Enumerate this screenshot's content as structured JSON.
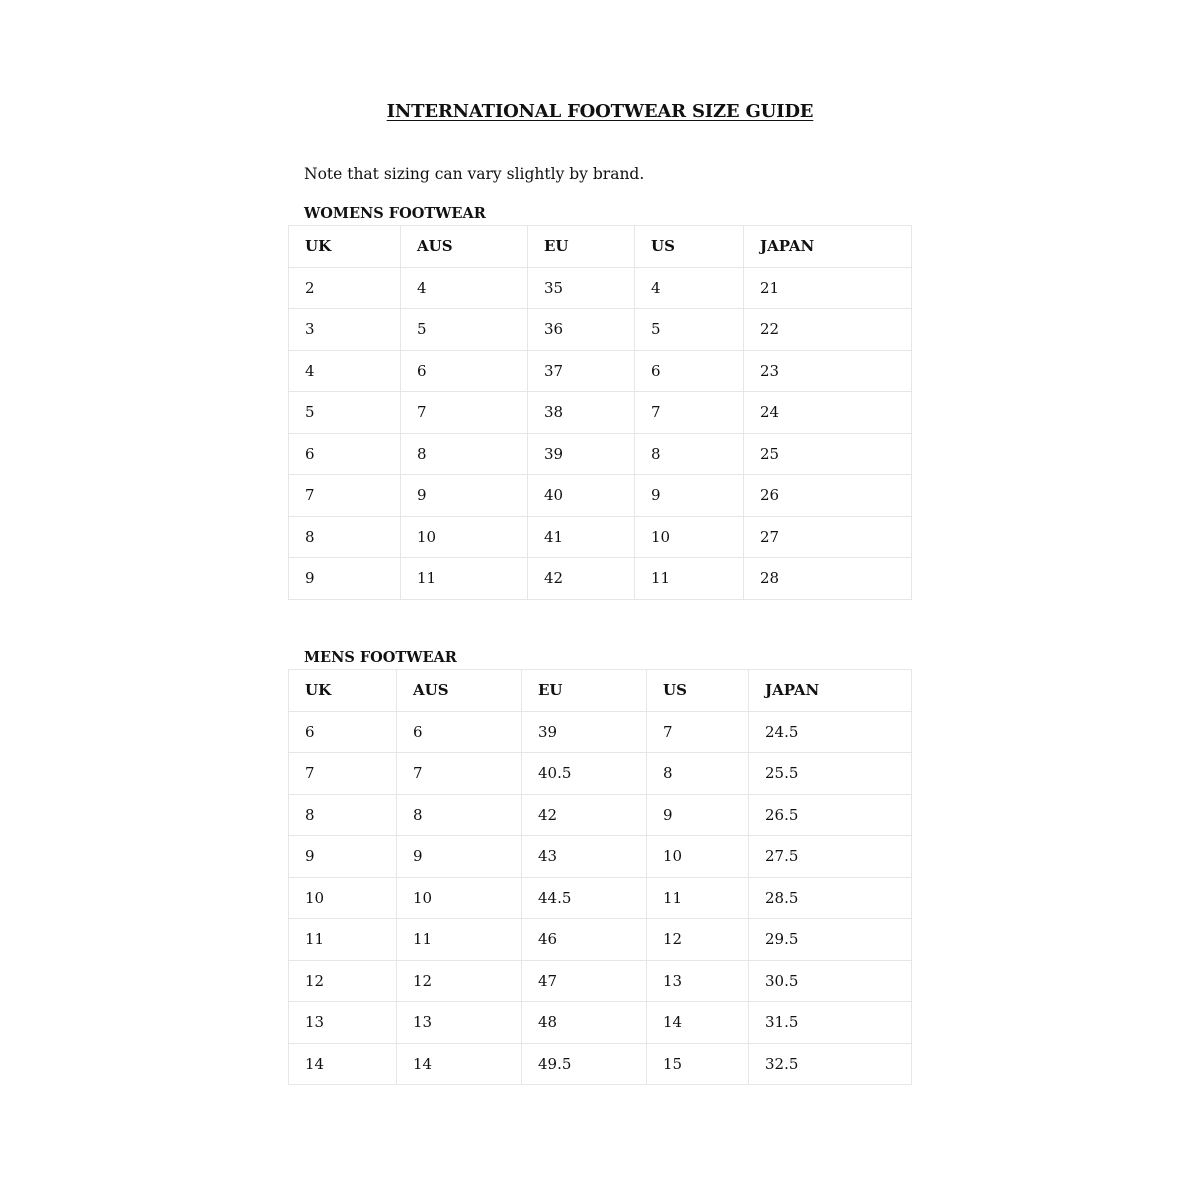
{
  "title": "INTERNATIONAL FOOTWEAR SIZE GUIDE",
  "note": "Note that sizing can vary slightly by brand.",
  "womens": {
    "heading": "WOMENS FOOTWEAR",
    "columns": [
      "UK",
      "AUS",
      "EU",
      "US",
      "JAPAN"
    ],
    "rows": [
      [
        "2",
        "4",
        "35",
        "4",
        "21"
      ],
      [
        "3",
        "5",
        "36",
        "5",
        "22"
      ],
      [
        "4",
        "6",
        "37",
        "6",
        "23"
      ],
      [
        "5",
        "7",
        "38",
        "7",
        "24"
      ],
      [
        "6",
        "8",
        "39",
        "8",
        "25"
      ],
      [
        "7",
        "9",
        "40",
        "9",
        "26"
      ],
      [
        "8",
        "10",
        "41",
        "10",
        "27"
      ],
      [
        "9",
        "11",
        "42",
        "11",
        "28"
      ]
    ]
  },
  "mens": {
    "heading": "MENS FOOTWEAR",
    "columns": [
      "UK",
      "AUS",
      "EU",
      "US",
      "JAPAN"
    ],
    "rows": [
      [
        "6",
        "6",
        "39",
        "7",
        "24.5"
      ],
      [
        "7",
        "7",
        "40.5",
        "8",
        "25.5"
      ],
      [
        "8",
        "8",
        "42",
        "9",
        "26.5"
      ],
      [
        "9",
        "9",
        "43",
        "10",
        "27.5"
      ],
      [
        "10",
        "10",
        "44.5",
        "11",
        "28.5"
      ],
      [
        "11",
        "11",
        "46",
        "12",
        "29.5"
      ],
      [
        "12",
        "12",
        "47",
        "13",
        "30.5"
      ],
      [
        "13",
        "13",
        "48",
        "14",
        "31.5"
      ],
      [
        "14",
        "14",
        "49.5",
        "15",
        "32.5"
      ]
    ]
  }
}
